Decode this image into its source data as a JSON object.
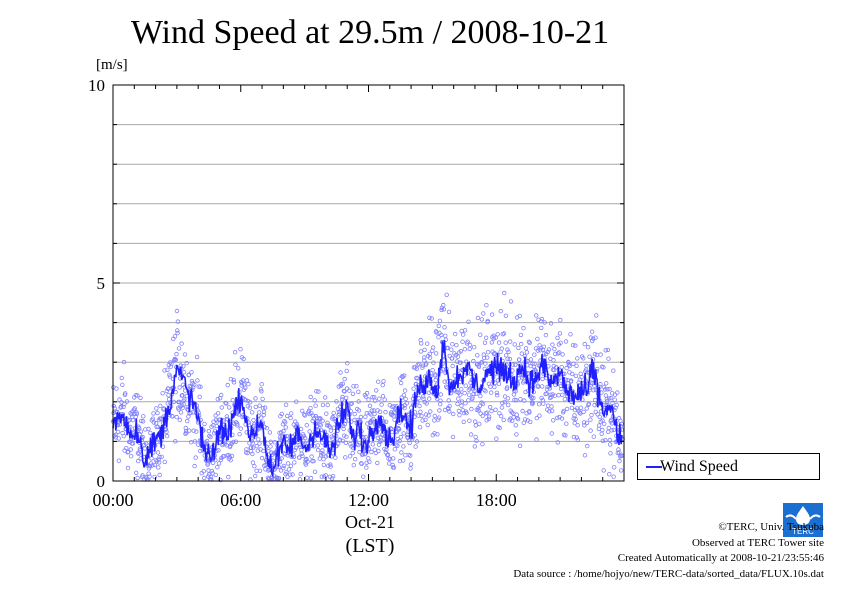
{
  "chart_data": {
    "type": "line",
    "title": "Wind Speed at 29.5m / 2008-10-21",
    "ylabel": "[m/s]",
    "xlabel": "(LST)",
    "date_label": "Oct-21",
    "ylim": [
      0,
      10
    ],
    "xlim_hours": [
      0,
      24
    ],
    "y_ticks": [
      "0",
      "5",
      "10"
    ],
    "x_ticks": [
      {
        "h": 0,
        "label": "00:00"
      },
      {
        "h": 6,
        "label": "06:00"
      },
      {
        "h": 12,
        "label": "12:00"
      },
      {
        "h": 18,
        "label": "18:00"
      }
    ],
    "grid": true,
    "legend_position": "right",
    "series": [
      {
        "name": "Wind Speed",
        "color": "#2020ff",
        "scatter_color": "#8080ff",
        "x_hours": [
          0,
          0.25,
          0.5,
          0.75,
          1,
          1.25,
          1.5,
          1.75,
          2,
          2.25,
          2.5,
          2.75,
          3,
          3.25,
          3.5,
          3.75,
          4,
          4.25,
          4.5,
          4.75,
          5,
          5.25,
          5.5,
          5.75,
          6,
          6.25,
          6.5,
          6.75,
          7,
          7.25,
          7.5,
          7.75,
          8,
          8.25,
          8.5,
          8.75,
          9,
          9.25,
          9.5,
          9.75,
          10,
          10.25,
          10.5,
          10.75,
          11,
          11.25,
          11.5,
          11.75,
          12,
          12.25,
          12.5,
          12.75,
          13,
          13.25,
          13.5,
          13.75,
          14,
          14.25,
          14.5,
          14.75,
          15,
          15.25,
          15.5,
          15.75,
          16,
          16.25,
          16.5,
          16.75,
          17,
          17.25,
          17.5,
          17.75,
          18,
          18.25,
          18.5,
          18.75,
          19,
          19.25,
          19.5,
          19.75,
          20,
          20.25,
          20.5,
          20.75,
          21,
          21.25,
          21.5,
          21.75,
          22,
          22.25,
          22.5,
          22.75,
          23,
          23.25,
          23.5,
          23.75
        ],
        "values": [
          1.4,
          1.6,
          1.7,
          1.2,
          1.3,
          1.1,
          0.5,
          0.8,
          1.0,
          1.2,
          1.6,
          2.2,
          2.8,
          2.6,
          2.2,
          2.0,
          1.6,
          0.8,
          0.5,
          0.8,
          1.3,
          1.2,
          1.4,
          1.8,
          2.2,
          1.6,
          1.0,
          1.4,
          1.5,
          0.6,
          0.3,
          0.6,
          0.9,
          0.8,
          1.0,
          1.2,
          0.8,
          1.0,
          1.4,
          1.1,
          1.0,
          0.7,
          1.2,
          1.6,
          1.9,
          1.0,
          1.4,
          0.9,
          1.1,
          1.3,
          1.8,
          1.3,
          1.0,
          1.3,
          1.9,
          1.5,
          1.3,
          2.2,
          2.4,
          2.6,
          2.5,
          2.3,
          3.6,
          2.5,
          2.4,
          2.8,
          2.6,
          2.9,
          2.4,
          2.4,
          2.7,
          2.8,
          2.9,
          2.7,
          2.8,
          2.5,
          2.7,
          2.9,
          2.6,
          2.4,
          2.8,
          2.9,
          2.5,
          2.5,
          2.8,
          2.3,
          2.2,
          2.1,
          2.3,
          2.2,
          2.8,
          2.4,
          1.7,
          1.9,
          1.7,
          1.0
        ]
      }
    ]
  },
  "legend": {
    "label": "Wind Speed"
  },
  "footer": {
    "line1": "©TERC, Univ. Tsukuba",
    "line2": "Observed at TERC Tower site",
    "line3": "Created Automatically at 2008-10-21/23:55:46",
    "line4": "Data source : /home/hojyo/new/TERC-data/sorted_data/FLUX.10s.dat"
  },
  "logo": {
    "text": "TERC"
  }
}
